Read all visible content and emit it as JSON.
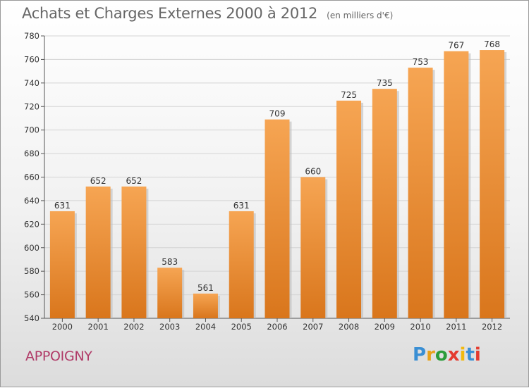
{
  "header": {
    "title": "Achats et Charges Externes 2000 à 2012",
    "unit": "(en milliers d'€)"
  },
  "footer": {
    "town": "APPOIGNY",
    "brand": "Proxiti"
  },
  "colors": {
    "bar_top": "#f6a553",
    "bar_bottom": "#d9761c",
    "grid": "#d4d4d4",
    "text": "#333333",
    "title": "#666666",
    "town": "#b03a67",
    "logo_letters": [
      "#3a8fd4",
      "#e8a21a",
      "#2b9c3a",
      "#e43b2f",
      "#f2b90d",
      "#3a8fd4",
      "#e43b2f"
    ]
  },
  "chart_data": {
    "type": "bar",
    "title": "Achats et Charges Externes 2000 à 2012",
    "subtitle": "(en milliers d'€)",
    "categories": [
      "2000",
      "2001",
      "2002",
      "2003",
      "2004",
      "2005",
      "2006",
      "2007",
      "2008",
      "2009",
      "2010",
      "2011",
      "2012"
    ],
    "values": [
      631,
      652,
      652,
      583,
      561,
      631,
      709,
      660,
      725,
      735,
      753,
      767,
      768
    ],
    "ylim": [
      540,
      780
    ],
    "yticks": [
      540,
      560,
      580,
      600,
      620,
      640,
      660,
      680,
      700,
      720,
      740,
      760,
      780
    ],
    "grid": true,
    "data_labels": true
  }
}
